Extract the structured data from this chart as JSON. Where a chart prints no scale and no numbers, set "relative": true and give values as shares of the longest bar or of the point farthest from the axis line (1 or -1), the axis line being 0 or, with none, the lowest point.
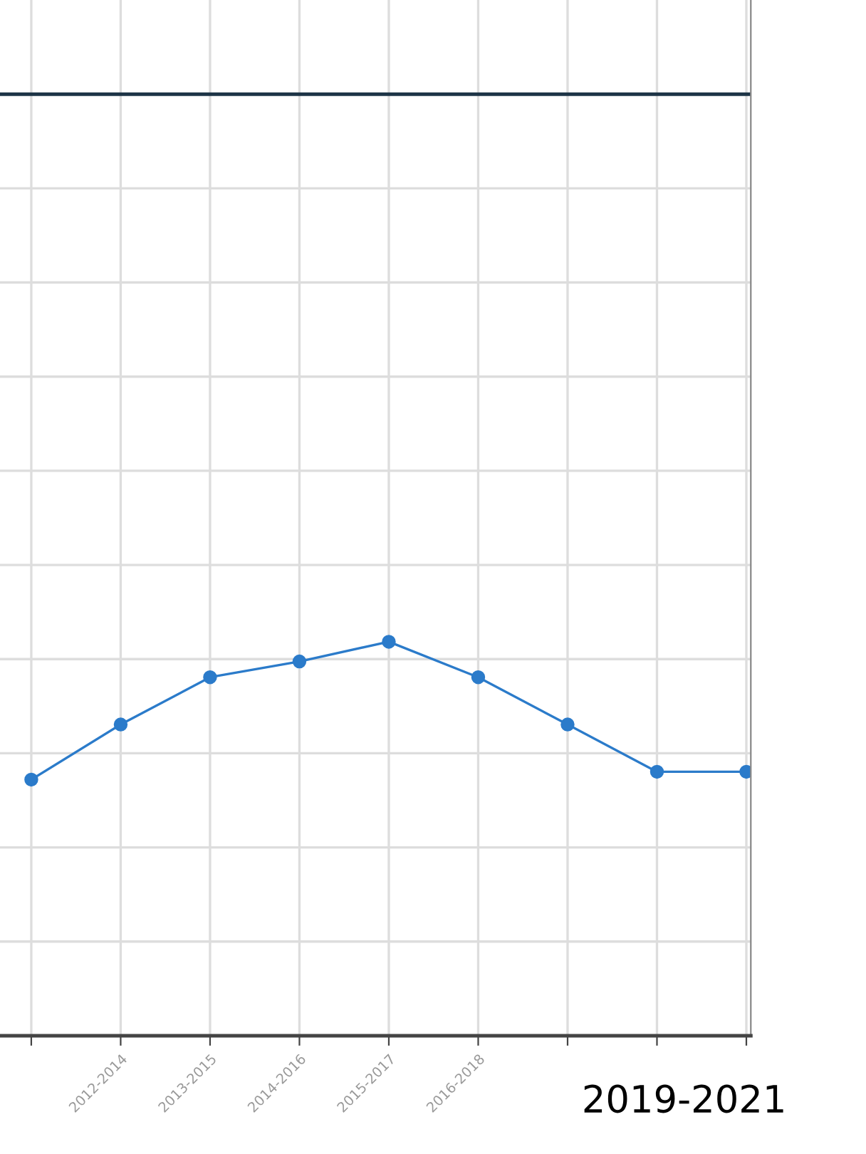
{
  "chart_data": {
    "type": "line",
    "relative": true,
    "categories": [
      null,
      "2012-2014",
      "2013-2015",
      "2014-2016",
      "2015-2017",
      "2016-2018",
      null,
      null,
      null
    ],
    "series": [
      {
        "color": "#2b7bca",
        "values": [
          0.65,
          0.79,
          0.91,
          0.95,
          1,
          0.91,
          0.79,
          0.67,
          0.67
        ]
      }
    ],
    "marker": "circle",
    "line_style": "solid",
    "grid": true,
    "ref_lines": [
      {
        "axis": "y",
        "value": 2.39,
        "color": "#1d3446"
      }
    ],
    "annotations": [
      "2019-2021"
    ]
  }
}
